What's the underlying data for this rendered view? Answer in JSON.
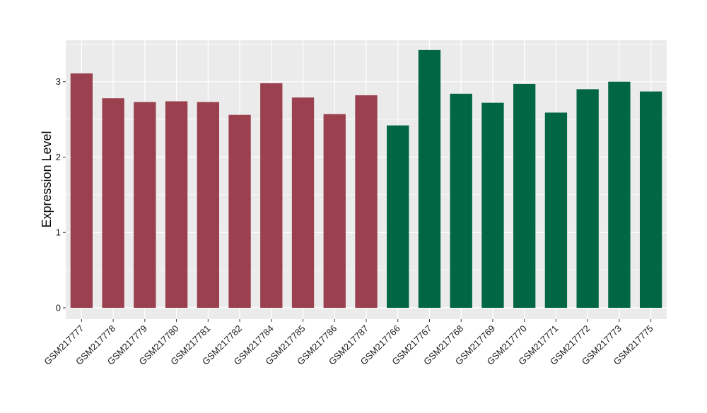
{
  "chart_data": {
    "type": "bar",
    "ylabel": "Expression Level",
    "xlabel": "",
    "ylim": [
      -0.15,
      3.55
    ],
    "yticks": [
      0,
      1,
      2,
      3
    ],
    "grid": true,
    "categories": [
      "GSM217777",
      "GSM217778",
      "GSM217779",
      "GSM217780",
      "GSM217781",
      "GSM217782",
      "GSM217784",
      "GSM217785",
      "GSM217786",
      "GSM217787",
      "GSM217766",
      "GSM217767",
      "GSM217768",
      "GSM217769",
      "GSM217770",
      "GSM217771",
      "GSM217772",
      "GSM217773",
      "GSM217775"
    ],
    "values": [
      3.11,
      2.78,
      2.73,
      2.74,
      2.73,
      2.56,
      2.98,
      2.79,
      2.57,
      2.82,
      2.42,
      3.42,
      2.84,
      2.72,
      2.97,
      2.59,
      2.9,
      3.0,
      2.87
    ],
    "group_of_bar": [
      0,
      0,
      0,
      0,
      0,
      0,
      0,
      0,
      0,
      0,
      1,
      1,
      1,
      1,
      1,
      1,
      1,
      1,
      1
    ],
    "group_colors": [
      "#9a404f",
      "#006644"
    ],
    "panel_color": "#ebebeb",
    "grid_color": "#ffffff"
  }
}
